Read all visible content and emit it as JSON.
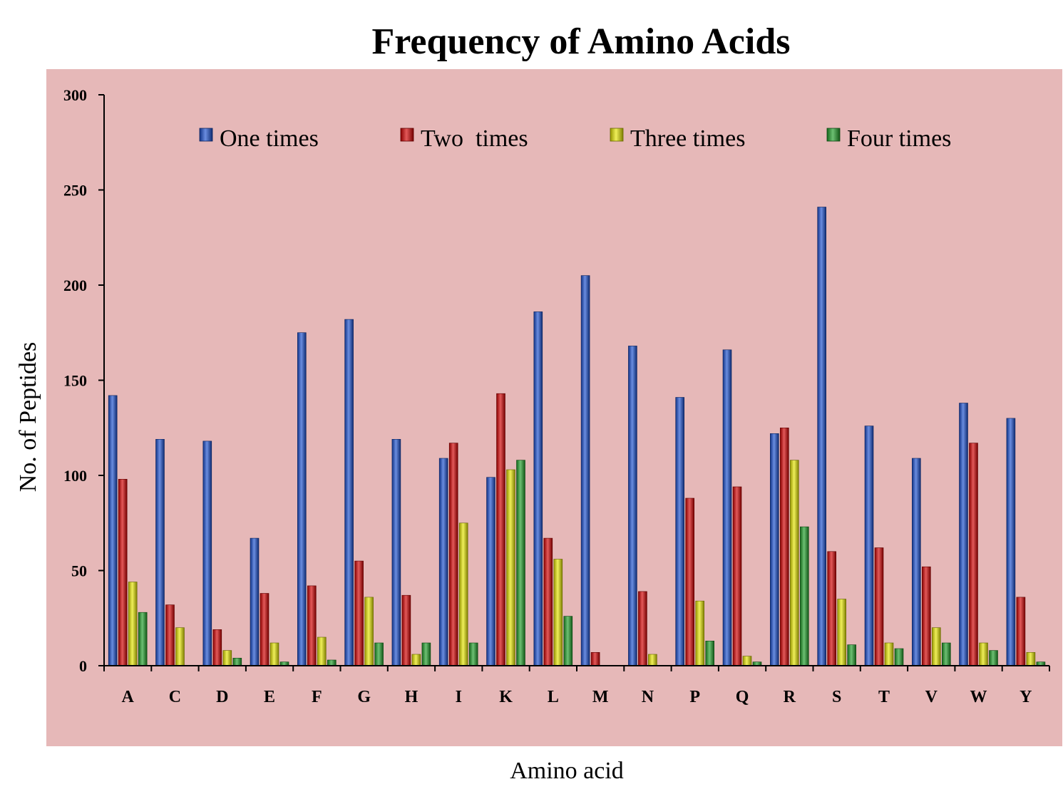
{
  "colors": {
    "plot_background": "#e6b8b8",
    "page_background": "#ffffff",
    "series": [
      "#1a4fcf",
      "#d40000",
      "#e6e600",
      "#1e9e28"
    ]
  },
  "chart_data": {
    "type": "bar",
    "title": "Frequency of Amino Acids",
    "xlabel": "Amino acid",
    "ylabel": "No. of  Peptides",
    "ylim": [
      0,
      300
    ],
    "yticks": [
      0,
      50,
      100,
      150,
      200,
      250,
      300
    ],
    "grid": false,
    "legend_position": "top",
    "categories": [
      "A",
      "C",
      "D",
      "E",
      "F",
      "G",
      "H",
      "I",
      "K",
      "L",
      "M",
      "N",
      "P",
      "Q",
      "R",
      "S",
      "T",
      "V",
      "W",
      "Y"
    ],
    "series": [
      {
        "name": "One times",
        "values": [
          142,
          119,
          118,
          67,
          175,
          182,
          119,
          109,
          99,
          186,
          205,
          168,
          141,
          166,
          122,
          241,
          126,
          109,
          138,
          130
        ]
      },
      {
        "name": "Two  times",
        "values": [
          98,
          32,
          19,
          38,
          42,
          55,
          37,
          117,
          143,
          67,
          7,
          39,
          88,
          94,
          125,
          60,
          62,
          52,
          117,
          36
        ]
      },
      {
        "name": "Three times",
        "values": [
          44,
          20,
          8,
          12,
          15,
          36,
          6,
          75,
          103,
          56,
          0,
          6,
          34,
          5,
          108,
          35,
          12,
          20,
          12,
          7
        ]
      },
      {
        "name": "Four times",
        "values": [
          28,
          0,
          4,
          2,
          3,
          12,
          12,
          12,
          108,
          26,
          0,
          0,
          13,
          2,
          73,
          11,
          9,
          12,
          8,
          2
        ]
      }
    ]
  }
}
